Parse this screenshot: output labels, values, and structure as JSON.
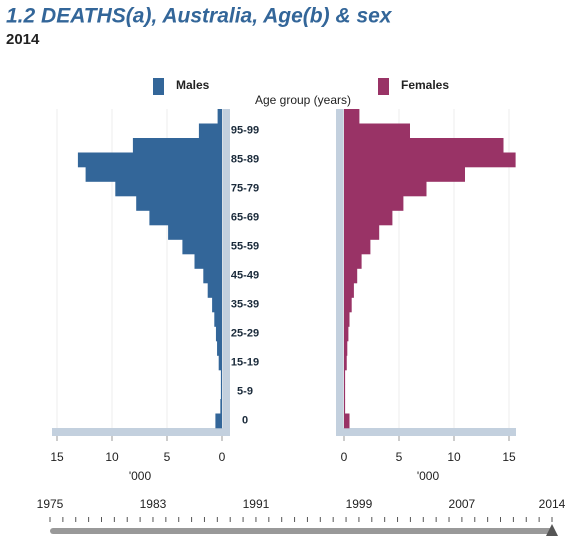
{
  "chart_data": {
    "type": "pyramid",
    "title": "1.2 DEATHS(a), Australia, Age(b) & sex",
    "subtitle": "2014",
    "ylabel": "Age group (years)",
    "xlabel": "'000",
    "categories": [
      null,
      "95-99",
      null,
      "85-89",
      null,
      "75-79",
      null,
      "65-69",
      null,
      "55-59",
      null,
      "45-49",
      null,
      "35-39",
      null,
      "25-29",
      null,
      "15-19",
      null,
      "5-9",
      null,
      "0"
    ],
    "series": [
      {
        "name": "Males",
        "color": "#336699",
        "values": [
          0.4,
          2.1,
          8.1,
          13.1,
          12.4,
          9.7,
          7.8,
          6.6,
          4.9,
          3.6,
          2.5,
          1.7,
          1.3,
          0.9,
          0.7,
          0.55,
          0.45,
          0.3,
          0.1,
          0.1,
          0.15,
          0.6
        ]
      },
      {
        "name": "Females",
        "color": "#993366",
        "values": [
          1.4,
          6.0,
          14.5,
          15.6,
          11.0,
          7.5,
          5.4,
          4.4,
          3.2,
          2.4,
          1.6,
          1.2,
          0.9,
          0.7,
          0.5,
          0.4,
          0.3,
          0.25,
          0.1,
          0.1,
          0.1,
          0.5
        ]
      }
    ],
    "xlim": [
      0,
      15
    ],
    "xticks": [
      0,
      5,
      10,
      15
    ],
    "grid": true
  },
  "timeline": {
    "labels": [
      1975,
      1983,
      1991,
      1999,
      2007,
      2014
    ]
  }
}
